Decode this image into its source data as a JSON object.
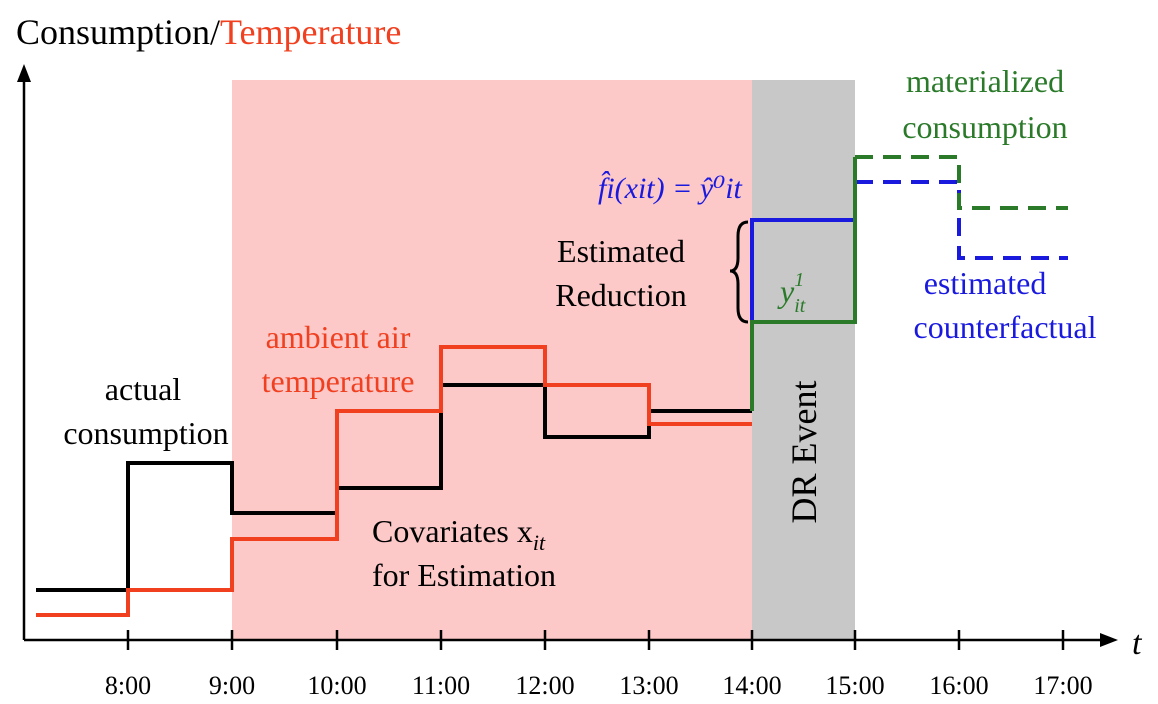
{
  "title": {
    "part1": "Consumption/",
    "part2": "Temperature"
  },
  "x_axis_symbol": "t",
  "time_ticks": [
    "8:00",
    "9:00",
    "10:00",
    "11:00",
    "12:00",
    "13:00",
    "14:00",
    "15:00",
    "16:00",
    "17:00"
  ],
  "labels": {
    "actual_line1": "actual",
    "actual_line2": "consumption",
    "ambient_line1": "ambient air",
    "ambient_line2": "temperature",
    "covariates_line1": "Covariates x",
    "covariates_sub": "it",
    "covariates_line2": "for Estimation",
    "estimated_line1": "Estimated",
    "estimated_line2": "Reduction",
    "dr_event": "DR Event",
    "formula": "f̂i(xit) = ŷ⁰it",
    "y1": "y",
    "y1_sup": "1",
    "y1_sub": "it",
    "materialized_line1": "materialized",
    "materialized_line2": "consumption",
    "estimated_cf_line1": "estimated",
    "estimated_cf_line2": "counterfactual"
  },
  "colors": {
    "consumption": "#000000",
    "temperature": "#f04020",
    "materialized": "#2a7a2a",
    "counterfactual": "#1a1adf",
    "covariate_region": "#fcc8c8",
    "dr_region": "#c8c8c8"
  }
}
